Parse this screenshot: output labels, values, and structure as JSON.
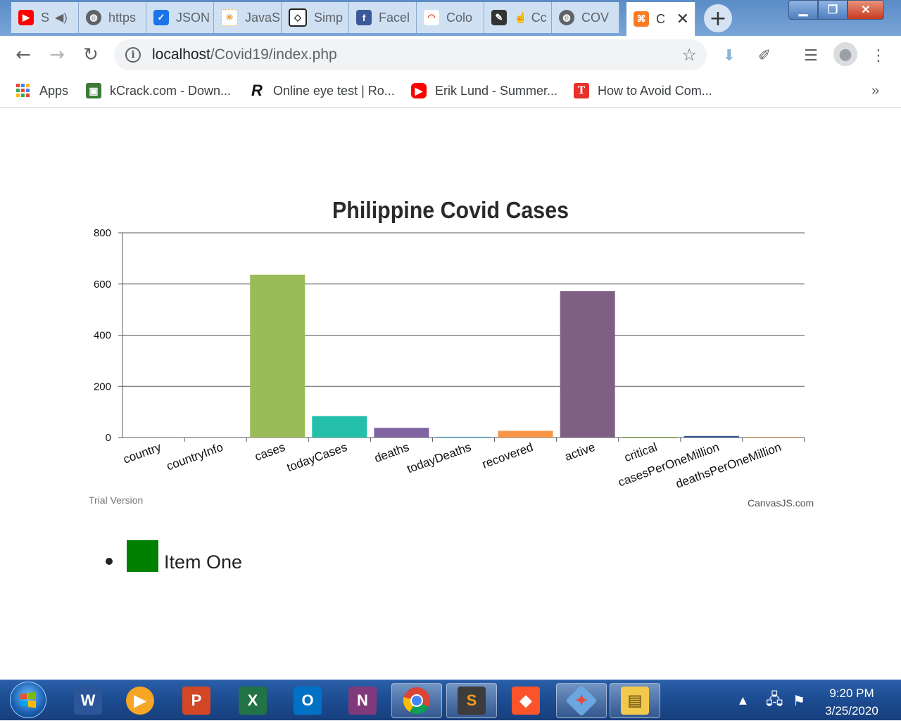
{
  "browser": {
    "tabs": [
      {
        "label": "S",
        "icon": "youtube-icon",
        "icon_color": "#ff0000",
        "extra": "speaker-icon"
      },
      {
        "label": "https",
        "icon": "globe-icon",
        "icon_color": "#5f6368"
      },
      {
        "label": "JSON",
        "icon": "checkbox-icon",
        "icon_color": "#1a73e8"
      },
      {
        "label": "JavaS",
        "icon": "spinner-icon",
        "icon_color": "#e8a33d"
      },
      {
        "label": "Simp",
        "icon": "codepen-icon",
        "icon_color": "#222222"
      },
      {
        "label": "Facel",
        "icon": "facebook-icon",
        "icon_color": "#3b5998"
      },
      {
        "label": "Colo",
        "icon": "rainbow-icon",
        "icon_color": "#e44d26"
      },
      {
        "label": "Cc",
        "icon": "pen-icon",
        "icon_color": "#333333"
      },
      {
        "label": "COV",
        "icon": "globe-icon",
        "icon_color": "#5f6368"
      },
      {
        "label": "C",
        "icon": "xampp-icon",
        "icon_color": "#fb7a24"
      }
    ],
    "new_tab_label": "+",
    "url_host": "localhost",
    "url_path": "/Covid19/index.php",
    "bookmarks": [
      {
        "label": "Apps",
        "icon": "apps-grid-icon"
      },
      {
        "label": "kCrack.com - Down...",
        "icon": "kcrack-icon"
      },
      {
        "label": "Online eye test | Ro...",
        "icon": "r-logo-icon"
      },
      {
        "label": "Erik Lund - Summer...",
        "icon": "youtube-icon"
      },
      {
        "label": "How to Avoid Com...",
        "icon": "t-logo-icon"
      }
    ],
    "bookmarks_overflow": "»"
  },
  "chart_data": {
    "type": "bar",
    "title": "Philippine Covid Cases",
    "categories": [
      "country",
      "countryInfo",
      "cases",
      "todayCases",
      "deaths",
      "todayDeaths",
      "recovered",
      "active",
      "critical",
      "casesPerOneMillion",
      "deathsPerOneMillion"
    ],
    "values": [
      0,
      0,
      636,
      84,
      38,
      3,
      26,
      572,
      1,
      6,
      0.4
    ],
    "colors": [
      "#4f81bc",
      "#c0504e",
      "#9bbb58",
      "#23bfaa",
      "#8064a1",
      "#4aacc5",
      "#f79647",
      "#7f6084",
      "#77a033",
      "#33558b",
      "#e59566"
    ],
    "ylim": [
      0,
      800
    ],
    "yticks": [
      0,
      200,
      400,
      600,
      800
    ],
    "grid": true,
    "xlabel": "",
    "ylabel": ""
  },
  "chart_footer": {
    "trial": "Trial Version",
    "credit": "CanvasJS.com"
  },
  "legend": {
    "items": [
      {
        "label": "Item One",
        "color": "#008000"
      }
    ]
  },
  "taskbar": {
    "time": "9:20 PM",
    "date": "3/25/2020",
    "apps": [
      "word-icon",
      "media-player-icon",
      "powerpoint-icon",
      "excel-icon",
      "outlook-icon",
      "onenote-icon",
      "chrome-icon",
      "sublime-icon",
      "brave-icon",
      "git-icon",
      "file-explorer-icon"
    ]
  }
}
